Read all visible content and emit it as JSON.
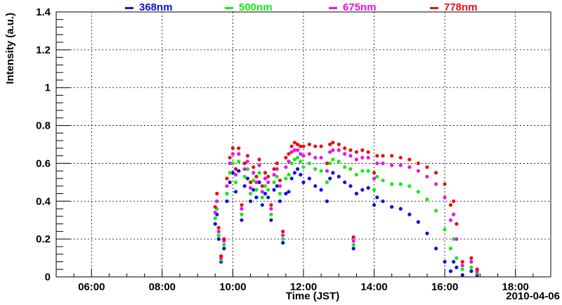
{
  "chart_data": {
    "type": "scatter",
    "xlabel": "Time (JST)",
    "ylabel": "Intensity (a.u.)",
    "date_label": "2010-04-06",
    "xlim": [
      "05:00",
      "19:00"
    ],
    "ylim": [
      0,
      1.4
    ],
    "x_ticks": [
      "06:00",
      "08:00",
      "10:00",
      "12:00",
      "14:00",
      "16:00",
      "18:00"
    ],
    "y_ticks": [
      "0",
      "0.2",
      "0.4",
      "0.6",
      "0.8",
      "1",
      "1.2",
      "1.4"
    ],
    "grid": true,
    "legend_position": "top",
    "series": [
      {
        "name": "368nm",
        "color": "#1010e0",
        "points": [
          [
            "09:30",
            0.28
          ],
          [
            "09:33",
            0.33
          ],
          [
            "09:36",
            0.2
          ],
          [
            "09:40",
            0.08
          ],
          [
            "09:45",
            0.15
          ],
          [
            "09:50",
            0.4
          ],
          [
            "09:55",
            0.5
          ],
          [
            "10:00",
            0.55
          ],
          [
            "10:05",
            0.45
          ],
          [
            "10:10",
            0.56
          ],
          [
            "10:15",
            0.3
          ],
          [
            "10:20",
            0.48
          ],
          [
            "10:25",
            0.52
          ],
          [
            "10:30",
            0.4
          ],
          [
            "10:35",
            0.46
          ],
          [
            "10:40",
            0.42
          ],
          [
            "10:45",
            0.5
          ],
          [
            "10:50",
            0.38
          ],
          [
            "10:55",
            0.44
          ],
          [
            "11:00",
            0.42
          ],
          [
            "11:05",
            0.3
          ],
          [
            "11:10",
            0.46
          ],
          [
            "11:15",
            0.48
          ],
          [
            "11:20",
            0.4
          ],
          [
            "11:25",
            0.18
          ],
          [
            "11:30",
            0.44
          ],
          [
            "11:35",
            0.45
          ],
          [
            "11:40",
            0.52
          ],
          [
            "11:45",
            0.55
          ],
          [
            "11:50",
            0.57
          ],
          [
            "11:55",
            0.54
          ],
          [
            "12:00",
            0.5
          ],
          [
            "12:10",
            0.52
          ],
          [
            "12:20",
            0.48
          ],
          [
            "12:30",
            0.46
          ],
          [
            "12:40",
            0.4
          ],
          [
            "12:45",
            0.52
          ],
          [
            "12:50",
            0.55
          ],
          [
            "13:00",
            0.53
          ],
          [
            "13:10",
            0.5
          ],
          [
            "13:20",
            0.48
          ],
          [
            "13:25",
            0.15
          ],
          [
            "13:30",
            0.44
          ],
          [
            "13:40",
            0.46
          ],
          [
            "13:50",
            0.47
          ],
          [
            "14:00",
            0.38
          ],
          [
            "14:05",
            0.42
          ],
          [
            "14:15",
            0.4
          ],
          [
            "14:30",
            0.37
          ],
          [
            "14:45",
            0.36
          ],
          [
            "15:00",
            0.33
          ],
          [
            "15:15",
            0.29
          ],
          [
            "15:30",
            0.23
          ],
          [
            "15:45",
            0.15
          ],
          [
            "16:00",
            0.08
          ],
          [
            "16:10",
            0.03
          ],
          [
            "16:15",
            0.08
          ],
          [
            "16:20",
            0.05
          ],
          [
            "16:30",
            0.01
          ],
          [
            "16:45",
            0.03
          ],
          [
            "16:55",
            0.01
          ]
        ]
      },
      {
        "name": "500nm",
        "color": "#10ee10",
        "points": [
          [
            "09:30",
            0.31
          ],
          [
            "09:33",
            0.36
          ],
          [
            "09:36",
            0.22
          ],
          [
            "09:40",
            0.09
          ],
          [
            "09:45",
            0.17
          ],
          [
            "09:50",
            0.44
          ],
          [
            "09:55",
            0.55
          ],
          [
            "10:00",
            0.6
          ],
          [
            "10:05",
            0.5
          ],
          [
            "10:10",
            0.61
          ],
          [
            "10:15",
            0.33
          ],
          [
            "10:20",
            0.53
          ],
          [
            "10:25",
            0.57
          ],
          [
            "10:30",
            0.44
          ],
          [
            "10:35",
            0.51
          ],
          [
            "10:40",
            0.46
          ],
          [
            "10:45",
            0.55
          ],
          [
            "10:50",
            0.42
          ],
          [
            "10:55",
            0.48
          ],
          [
            "11:00",
            0.46
          ],
          [
            "11:05",
            0.33
          ],
          [
            "11:10",
            0.5
          ],
          [
            "11:15",
            0.53
          ],
          [
            "11:20",
            0.44
          ],
          [
            "11:25",
            0.2
          ],
          [
            "11:30",
            0.52
          ],
          [
            "11:35",
            0.54
          ],
          [
            "11:40",
            0.6
          ],
          [
            "11:45",
            0.62
          ],
          [
            "11:50",
            0.63
          ],
          [
            "11:55",
            0.61
          ],
          [
            "12:00",
            0.58
          ],
          [
            "12:10",
            0.6
          ],
          [
            "12:20",
            0.57
          ],
          [
            "12:30",
            0.56
          ],
          [
            "12:40",
            0.5
          ],
          [
            "12:45",
            0.6
          ],
          [
            "12:50",
            0.62
          ],
          [
            "13:00",
            0.61
          ],
          [
            "13:10",
            0.58
          ],
          [
            "13:20",
            0.57
          ],
          [
            "13:25",
            0.17
          ],
          [
            "13:30",
            0.54
          ],
          [
            "13:40",
            0.56
          ],
          [
            "13:50",
            0.56
          ],
          [
            "14:00",
            0.46
          ],
          [
            "14:05",
            0.53
          ],
          [
            "14:15",
            0.51
          ],
          [
            "14:30",
            0.49
          ],
          [
            "14:45",
            0.49
          ],
          [
            "15:00",
            0.48
          ],
          [
            "15:15",
            0.45
          ],
          [
            "15:30",
            0.41
          ],
          [
            "15:45",
            0.35
          ],
          [
            "16:00",
            0.25
          ],
          [
            "16:10",
            0.15
          ],
          [
            "16:15",
            0.2
          ],
          [
            "16:20",
            0.1
          ],
          [
            "16:30",
            0.04
          ],
          [
            "16:45",
            0.05
          ],
          [
            "16:55",
            0.02
          ]
        ]
      },
      {
        "name": "675nm",
        "color": "#ee10ee",
        "points": [
          [
            "09:30",
            0.34
          ],
          [
            "09:33",
            0.4
          ],
          [
            "09:36",
            0.24
          ],
          [
            "09:40",
            0.1
          ],
          [
            "09:45",
            0.19
          ],
          [
            "09:50",
            0.48
          ],
          [
            "09:55",
            0.6
          ],
          [
            "10:00",
            0.65
          ],
          [
            "10:05",
            0.54
          ],
          [
            "10:10",
            0.65
          ],
          [
            "10:15",
            0.36
          ],
          [
            "10:20",
            0.57
          ],
          [
            "10:25",
            0.61
          ],
          [
            "10:30",
            0.47
          ],
          [
            "10:35",
            0.55
          ],
          [
            "10:40",
            0.5
          ],
          [
            "10:45",
            0.59
          ],
          [
            "10:50",
            0.45
          ],
          [
            "10:55",
            0.52
          ],
          [
            "11:00",
            0.5
          ],
          [
            "11:05",
            0.36
          ],
          [
            "11:10",
            0.54
          ],
          [
            "11:15",
            0.57
          ],
          [
            "11:20",
            0.48
          ],
          [
            "11:25",
            0.22
          ],
          [
            "11:30",
            0.58
          ],
          [
            "11:35",
            0.61
          ],
          [
            "11:40",
            0.66
          ],
          [
            "11:45",
            0.67
          ],
          [
            "11:50",
            0.67
          ],
          [
            "11:55",
            0.65
          ],
          [
            "12:00",
            0.64
          ],
          [
            "12:10",
            0.65
          ],
          [
            "12:20",
            0.63
          ],
          [
            "12:30",
            0.63
          ],
          [
            "12:40",
            0.56
          ],
          [
            "12:45",
            0.66
          ],
          [
            "12:50",
            0.67
          ],
          [
            "13:00",
            0.67
          ],
          [
            "13:10",
            0.65
          ],
          [
            "13:20",
            0.64
          ],
          [
            "13:25",
            0.19
          ],
          [
            "13:30",
            0.62
          ],
          [
            "13:40",
            0.63
          ],
          [
            "13:50",
            0.63
          ],
          [
            "14:00",
            0.52
          ],
          [
            "14:05",
            0.6
          ],
          [
            "14:15",
            0.6
          ],
          [
            "14:30",
            0.59
          ],
          [
            "14:45",
            0.59
          ],
          [
            "15:00",
            0.58
          ],
          [
            "15:15",
            0.56
          ],
          [
            "15:30",
            0.53
          ],
          [
            "15:45",
            0.49
          ],
          [
            "16:00",
            0.42
          ],
          [
            "16:10",
            0.3
          ],
          [
            "16:15",
            0.33
          ],
          [
            "16:20",
            0.2
          ],
          [
            "16:30",
            0.06
          ],
          [
            "16:45",
            0.08
          ],
          [
            "16:55",
            0.03
          ]
        ]
      },
      {
        "name": "778nm",
        "color": "#ee1010",
        "points": [
          [
            "09:30",
            0.37
          ],
          [
            "09:33",
            0.44
          ],
          [
            "09:36",
            0.26
          ],
          [
            "09:40",
            0.11
          ],
          [
            "09:45",
            0.2
          ],
          [
            "09:50",
            0.52
          ],
          [
            "09:55",
            0.63
          ],
          [
            "10:00",
            0.68
          ],
          [
            "10:05",
            0.57
          ],
          [
            "10:10",
            0.68
          ],
          [
            "10:15",
            0.38
          ],
          [
            "10:20",
            0.6
          ],
          [
            "10:25",
            0.64
          ],
          [
            "10:30",
            0.5
          ],
          [
            "10:35",
            0.58
          ],
          [
            "10:40",
            0.53
          ],
          [
            "10:45",
            0.62
          ],
          [
            "10:50",
            0.48
          ],
          [
            "10:55",
            0.55
          ],
          [
            "11:00",
            0.53
          ],
          [
            "11:05",
            0.38
          ],
          [
            "11:10",
            0.57
          ],
          [
            "11:15",
            0.6
          ],
          [
            "11:20",
            0.51
          ],
          [
            "11:25",
            0.24
          ],
          [
            "11:30",
            0.63
          ],
          [
            "11:35",
            0.65
          ],
          [
            "11:40",
            0.69
          ],
          [
            "11:45",
            0.71
          ],
          [
            "11:50",
            0.7
          ],
          [
            "11:55",
            0.69
          ],
          [
            "12:00",
            0.69
          ],
          [
            "12:10",
            0.7
          ],
          [
            "12:20",
            0.69
          ],
          [
            "12:30",
            0.69
          ],
          [
            "12:40",
            0.6
          ],
          [
            "12:45",
            0.7
          ],
          [
            "12:50",
            0.71
          ],
          [
            "13:00",
            0.7
          ],
          [
            "13:10",
            0.68
          ],
          [
            "13:20",
            0.67
          ],
          [
            "13:25",
            0.21
          ],
          [
            "13:30",
            0.66
          ],
          [
            "13:40",
            0.67
          ],
          [
            "13:50",
            0.66
          ],
          [
            "14:00",
            0.55
          ],
          [
            "14:05",
            0.64
          ],
          [
            "14:15",
            0.64
          ],
          [
            "14:30",
            0.64
          ],
          [
            "14:45",
            0.63
          ],
          [
            "15:00",
            0.62
          ],
          [
            "15:15",
            0.6
          ],
          [
            "15:30",
            0.58
          ],
          [
            "15:45",
            0.55
          ],
          [
            "16:00",
            0.49
          ],
          [
            "16:10",
            0.38
          ],
          [
            "16:15",
            0.4
          ],
          [
            "16:20",
            0.28
          ],
          [
            "16:30",
            0.08
          ],
          [
            "16:45",
            0.1
          ],
          [
            "16:55",
            0.04
          ]
        ]
      }
    ]
  }
}
